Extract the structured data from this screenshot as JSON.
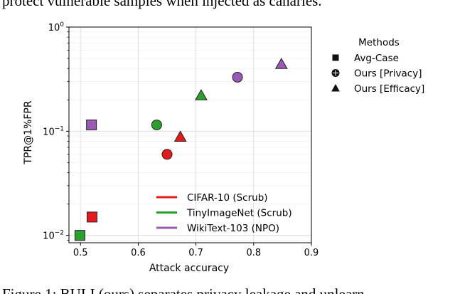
{
  "caption_top": "protect vulnerable samples when injected as canaries.",
  "caption_bottom": "Figure 1: BULI (ours) separates privacy leakage and unlearn",
  "chart_data": {
    "type": "scatter",
    "xlabel": "Attack accuracy",
    "ylabel": "TPR@1%FPR",
    "xscale": "linear",
    "yscale": "log",
    "xlim": [
      0.48,
      0.9
    ],
    "ylim": [
      0.0085,
      1.0
    ],
    "xticks": [
      0.5,
      0.6,
      0.7,
      0.8,
      0.9
    ],
    "xtick_labels": [
      "0.5",
      "0.6",
      "0.7",
      "0.8",
      "0.9"
    ],
    "yticks": [
      {
        "value": 0.01,
        "base": "10",
        "exp": "−2"
      },
      {
        "value": 0.1,
        "base": "10",
        "exp": "−1"
      },
      {
        "value": 1.0,
        "base": "10",
        "exp": "0"
      }
    ],
    "grid": true,
    "color_legend": {
      "placement": "lower-right",
      "entries": [
        {
          "label": "CIFAR-10 (Scrub)",
          "color": "#e41a1c"
        },
        {
          "label": "TinyImageNet (Scrub)",
          "color": "#2ca02c"
        },
        {
          "label": "WikiText-103 (NPO)",
          "color": "#9b59b6"
        }
      ]
    },
    "marker_legend": {
      "title": "Methods",
      "placement": "outside-right",
      "entries": [
        {
          "label": "Avg-Case",
          "marker": "square"
        },
        {
          "label": "Ours [Privacy]",
          "marker": "circle"
        },
        {
          "label": "Ours [Efficacy]",
          "marker": "triangle"
        }
      ]
    },
    "points": [
      {
        "group": "CIFAR-10 (Scrub)",
        "method": "Avg-Case",
        "x": 0.52,
        "y": 0.015,
        "color": "#e41a1c"
      },
      {
        "group": "CIFAR-10 (Scrub)",
        "method": "Ours [Privacy]",
        "x": 0.65,
        "y": 0.06,
        "color": "#e41a1c"
      },
      {
        "group": "CIFAR-10 (Scrub)",
        "method": "Ours [Efficacy]",
        "x": 0.673,
        "y": 0.088,
        "color": "#e41a1c"
      },
      {
        "group": "TinyImageNet (Scrub)",
        "method": "Avg-Case",
        "x": 0.499,
        "y": 0.01,
        "color": "#2ca02c"
      },
      {
        "group": "TinyImageNet (Scrub)",
        "method": "Ours [Privacy]",
        "x": 0.632,
        "y": 0.115,
        "color": "#2ca02c"
      },
      {
        "group": "TinyImageNet (Scrub)",
        "method": "Ours [Efficacy]",
        "x": 0.709,
        "y": 0.22,
        "color": "#2ca02c"
      },
      {
        "group": "WikiText-103 (NPO)",
        "method": "Avg-Case",
        "x": 0.519,
        "y": 0.115,
        "color": "#9b59b6"
      },
      {
        "group": "WikiText-103 (NPO)",
        "method": "Ours [Privacy]",
        "x": 0.772,
        "y": 0.33,
        "color": "#9b59b6"
      },
      {
        "group": "WikiText-103 (NPO)",
        "method": "Ours [Efficacy]",
        "x": 0.848,
        "y": 0.44,
        "color": "#9b59b6"
      }
    ]
  }
}
